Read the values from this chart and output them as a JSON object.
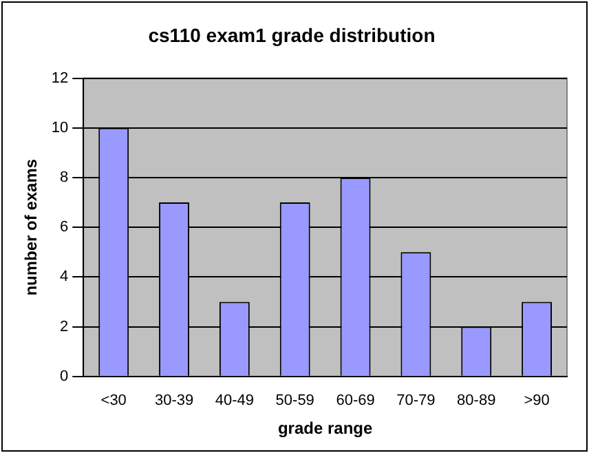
{
  "chart_data": {
    "type": "bar",
    "title": "cs110 exam1 grade distribution",
    "xlabel": "grade range",
    "ylabel": "number of exams",
    "categories": [
      "<30",
      "30-39",
      "40-49",
      "50-59",
      "60-69",
      "70-79",
      "80-89",
      ">90"
    ],
    "values": [
      10,
      7,
      3,
      7,
      8,
      5,
      2,
      3
    ],
    "color": "#9999ff",
    "ylim": [
      0,
      12
    ],
    "yticks": [
      0,
      2,
      4,
      6,
      8,
      10,
      12
    ],
    "grid": "y",
    "legend": false
  }
}
